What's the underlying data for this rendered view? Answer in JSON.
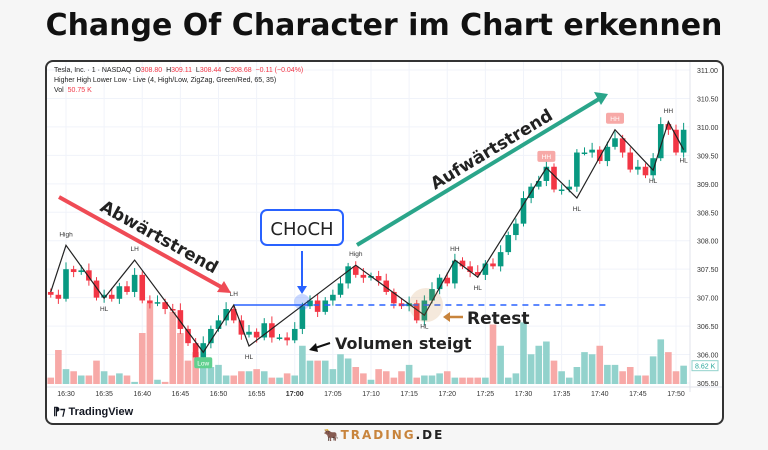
{
  "title": "Change Of Character im Chart erkennen",
  "legend": {
    "symbol": "Tesla, Inc. · 1 · NASDAQ",
    "o_label": "O",
    "o": "308.80",
    "h_label": "H",
    "h": "309.11",
    "l_label": "L",
    "l": "308.44",
    "c_label": "C",
    "c": "308.68",
    "change": "−0.11 (−0.04%)",
    "indicator": "Higher High Lower Low - Live (4, High/Low, ZigZag, Green/Red, 65, 35)",
    "vol_label": "Vol",
    "vol": "50.75 K"
  },
  "annotations": {
    "downtrend": "Abwärtstrend",
    "uptrend": "Aufwärtstrend",
    "choch": "CHoCH",
    "retest": "Retest",
    "volume_rising": "Volumen steigt"
  },
  "branding": {
    "tradingview": "TradingView",
    "footer_main": "TRADING",
    "footer_suffix": ".DE"
  },
  "colors": {
    "up": "#089981",
    "down": "#f23645",
    "vol_up": "#92d2cc",
    "vol_down": "#f7a9a7",
    "zigzag": "#222222",
    "choch": "#2962ff",
    "downtrend": "#ef4b55",
    "uptrend": "#2aa58a",
    "retest": "#c8843c"
  },
  "chart_data": {
    "type": "candlestick",
    "interval": "1 minute",
    "start_time": "16:28",
    "first_open": 307.1,
    "close": [
      307.05,
      306.98,
      307.5,
      307.45,
      307.48,
      307.3,
      307.0,
      307.05,
      306.98,
      307.2,
      307.1,
      307.4,
      306.95,
      306.9,
      306.92,
      306.8,
      306.78,
      306.45,
      306.2,
      305.95,
      306.2,
      306.45,
      306.6,
      306.8,
      306.6,
      306.35,
      306.4,
      306.3,
      306.55,
      306.3,
      306.3,
      306.25,
      306.45,
      306.85,
      306.95,
      306.75,
      306.95,
      307.05,
      307.25,
      307.55,
      307.4,
      307.35,
      307.38,
      307.3,
      307.1,
      306.9,
      306.85,
      306.9,
      306.6,
      306.95,
      307.15,
      307.35,
      307.25,
      307.65,
      307.55,
      307.45,
      307.4,
      307.6,
      307.55,
      307.8,
      308.1,
      308.3,
      308.75,
      308.95,
      309.05,
      309.3,
      308.9,
      308.9,
      308.95,
      309.55,
      309.55,
      309.6,
      309.4,
      309.65,
      309.8,
      309.55,
      309.25,
      309.3,
      309.15,
      309.45,
      310.05,
      309.95,
      309.55,
      309.95
    ],
    "volume_k": [
      3,
      16,
      7,
      6,
      4,
      4,
      11,
      6,
      4,
      5,
      4,
      1,
      24,
      38,
      2,
      1,
      34,
      24,
      11,
      15,
      10,
      8,
      9,
      4,
      4,
      6,
      6,
      7,
      6,
      3,
      3,
      5,
      4,
      18,
      11,
      11,
      11,
      7,
      14,
      12,
      8,
      5,
      2,
      7,
      6,
      3,
      6,
      9,
      3,
      4,
      4,
      5,
      6,
      3,
      3,
      3,
      3,
      3,
      28,
      18,
      3,
      5,
      29,
      14,
      18,
      20,
      11,
      6,
      3,
      8,
      15,
      14,
      18,
      9,
      9,
      6,
      8,
      4,
      4,
      13,
      21,
      15,
      6,
      8.62
    ],
    "last_volume_label": "8.62 K",
    "ylim": [
      305.5,
      311.0
    ],
    "y_ticks": [
      "311.00",
      "310.50",
      "310.00",
      "309.50",
      "309.00",
      "308.50",
      "308.00",
      "307.50",
      "307.00",
      "306.50",
      "306.00",
      "305.50"
    ],
    "x_ticks": [
      "16:30",
      "16:35",
      "16:40",
      "16:45",
      "16:50",
      "16:55",
      "17:00",
      "17:05",
      "17:10",
      "17:15",
      "17:20",
      "17:25",
      "17:30",
      "17:35",
      "17:40",
      "17:45",
      "17:50"
    ],
    "zigzag": [
      {
        "time": "16:28",
        "price": 307.1,
        "label": ""
      },
      {
        "time": "16:30",
        "price": 307.92,
        "label": "High",
        "pos": "above"
      },
      {
        "time": "16:35",
        "price": 306.99,
        "label": "HL",
        "pos": "below"
      },
      {
        "time": "16:39",
        "price": 307.66,
        "label": "LH",
        "pos": "above"
      },
      {
        "time": "16:48",
        "price": 306.04,
        "label": "Low",
        "pos": "below",
        "badge": true
      },
      {
        "time": "16:52",
        "price": 306.87,
        "label": "LH",
        "pos": "above"
      },
      {
        "time": "16:54",
        "price": 306.15,
        "label": "HL",
        "pos": "below"
      },
      {
        "time": "17:08",
        "price": 307.57,
        "label": "High",
        "pos": "above"
      },
      {
        "time": "17:17",
        "price": 306.69,
        "label": "HL",
        "pos": "below"
      },
      {
        "time": "17:21",
        "price": 307.66,
        "label": "HH",
        "pos": "above"
      },
      {
        "time": "17:24",
        "price": 307.36,
        "label": "HL",
        "pos": "below"
      },
      {
        "time": "17:33",
        "price": 309.28,
        "label": "HH",
        "pos": "above",
        "badge": true
      },
      {
        "time": "17:37",
        "price": 308.75,
        "label": "HL",
        "pos": "below"
      },
      {
        "time": "17:42",
        "price": 309.95,
        "label": "HH",
        "pos": "above",
        "badge": true
      },
      {
        "time": "17:47",
        "price": 309.24,
        "label": "HL",
        "pos": "below"
      },
      {
        "time": "17:49",
        "price": 310.09,
        "label": "HH",
        "pos": "above"
      },
      {
        "time": "17:51",
        "price": 309.6,
        "label": "HL",
        "pos": "below"
      }
    ],
    "choch_level": {
      "price": 306.87,
      "start": "16:52",
      "break": "17:01",
      "end": "17:41"
    }
  }
}
